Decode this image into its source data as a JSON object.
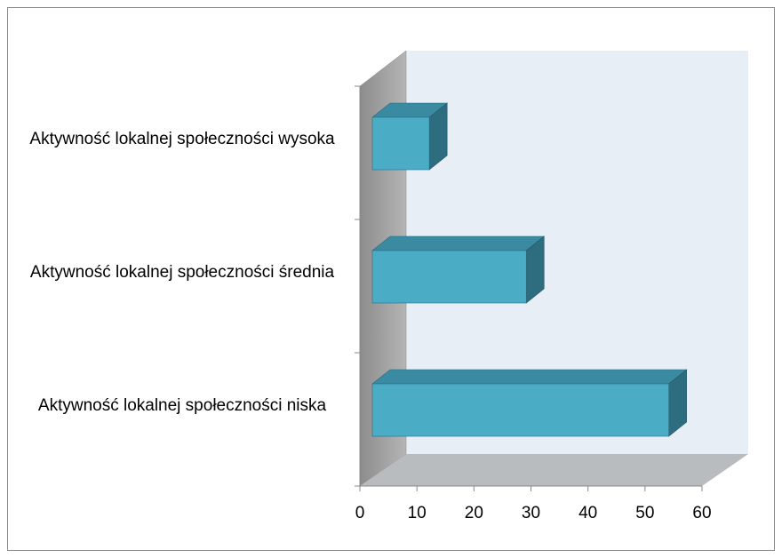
{
  "chart_data": {
    "type": "bar3d_horizontal",
    "categories": [
      "Aktywność lokalnej społeczności niska",
      "Aktywność lokalnej społeczności średnia",
      "Aktywność lokalnej społeczności wysoka"
    ],
    "values": [
      52,
      27,
      10
    ],
    "color": "#4bacc6",
    "xlim": [
      0,
      60
    ],
    "xticks": [
      0,
      10,
      20,
      30,
      40,
      50,
      60
    ]
  }
}
